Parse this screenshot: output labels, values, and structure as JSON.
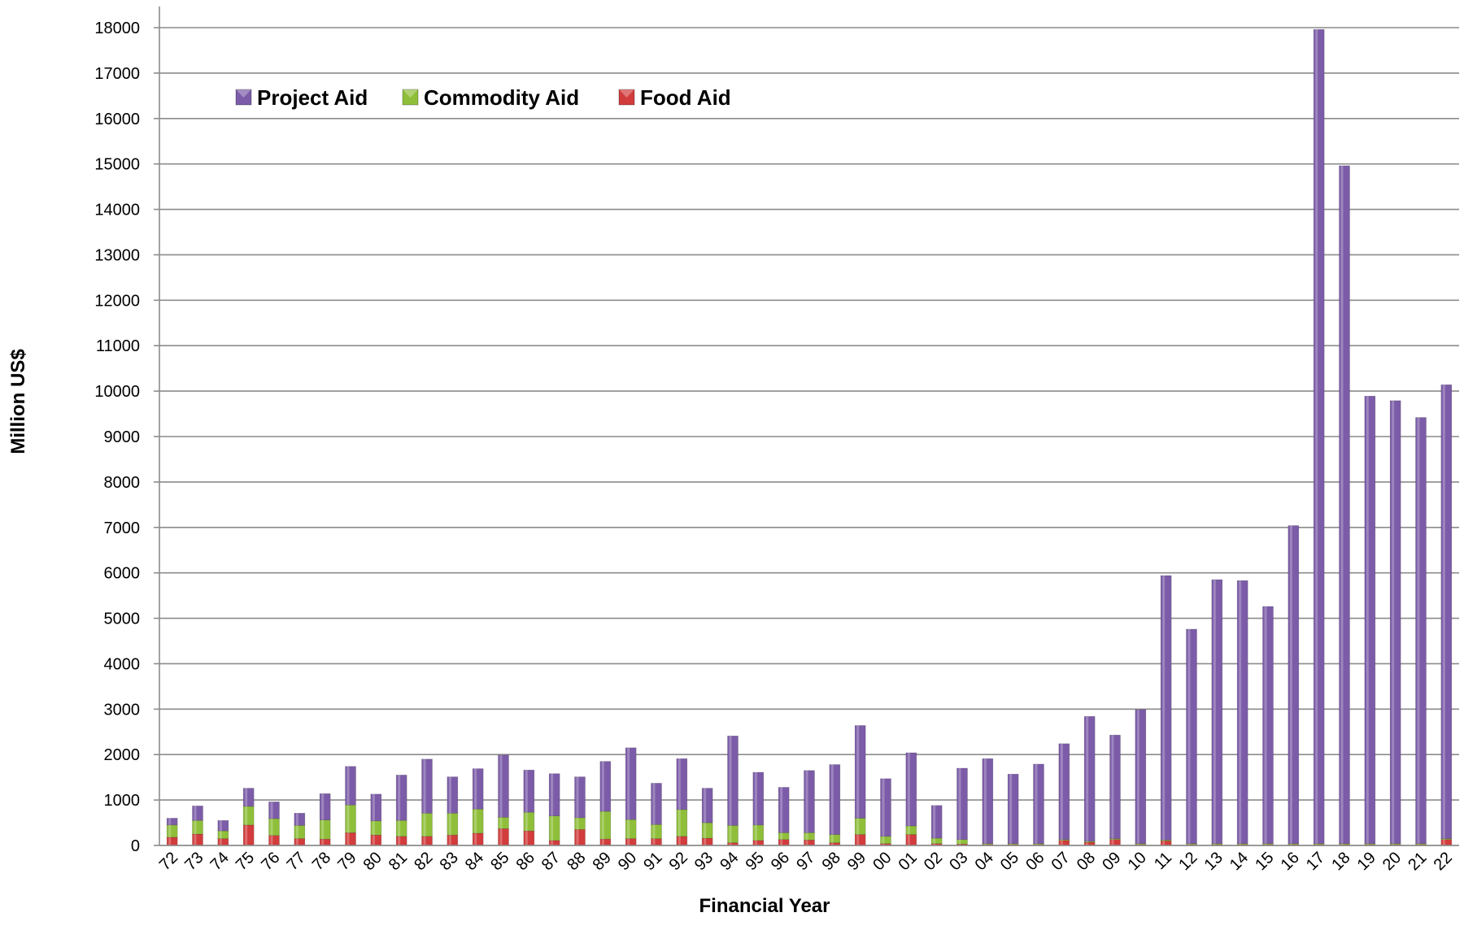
{
  "chart_data": {
    "type": "bar",
    "stacked": true,
    "title": "",
    "xlabel": "Financial Year",
    "ylabel": "Million US$",
    "ylim": [
      0,
      18000
    ],
    "yticks": [
      0,
      1000,
      2000,
      3000,
      4000,
      5000,
      6000,
      7000,
      8000,
      9000,
      10000,
      11000,
      12000,
      13000,
      14000,
      15000,
      16000,
      17000,
      18000
    ],
    "grid": true,
    "legend_position": "top-left",
    "categories": [
      "72",
      "73",
      "74",
      "75",
      "76",
      "77",
      "78",
      "79",
      "80",
      "81",
      "82",
      "83",
      "84",
      "85",
      "86",
      "87",
      "88",
      "89",
      "90",
      "91",
      "92",
      "93",
      "94",
      "95",
      "96",
      "97",
      "98",
      "99",
      "00",
      "01",
      "02",
      "03",
      "04",
      "05",
      "06",
      "07",
      "08",
      "09",
      "10",
      "11",
      "12",
      "13",
      "14",
      "15",
      "16",
      "17",
      "18",
      "19",
      "20",
      "21",
      "22"
    ],
    "series": [
      {
        "name": "Food Aid",
        "color": "#d23c3c",
        "values": [
          180,
          250,
          150,
          450,
          220,
          150,
          140,
          280,
          230,
          200,
          200,
          230,
          270,
          370,
          320,
          110,
          350,
          140,
          150,
          150,
          200,
          160,
          60,
          110,
          130,
          120,
          60,
          240,
          40,
          240,
          40,
          30,
          20,
          20,
          20,
          110,
          70,
          130,
          20,
          100,
          20,
          20,
          20,
          20,
          20,
          20,
          20,
          20,
          20,
          20,
          130
        ]
      },
      {
        "name": "Commodity Aid",
        "color": "#8fbf3a",
        "values": [
          270,
          300,
          170,
          410,
          370,
          290,
          420,
          610,
          310,
          350,
          510,
          480,
          530,
          250,
          410,
          540,
          260,
          610,
          420,
          310,
          590,
          340,
          380,
          340,
          150,
          160,
          180,
          360,
          160,
          190,
          120,
          100,
          20,
          20,
          20,
          20,
          20,
          20,
          20,
          20,
          20,
          20,
          20,
          20,
          20,
          20,
          20,
          20,
          20,
          20,
          20
        ]
      },
      {
        "name": "Project Aid",
        "color": "#7c5ca8",
        "values": [
          150,
          320,
          230,
          400,
          370,
          270,
          580,
          850,
          590,
          1000,
          1190,
          800,
          890,
          1370,
          930,
          930,
          900,
          1100,
          1580,
          910,
          1120,
          760,
          1970,
          1160,
          1000,
          1370,
          1540,
          2040,
          1270,
          1610,
          720,
          1570,
          1870,
          1530,
          1750,
          2110,
          2750,
          2280,
          2950,
          5820,
          4720,
          5810,
          5790,
          5220,
          7000,
          17920,
          14920,
          9850,
          9750,
          9380,
          9990
        ]
      }
    ]
  }
}
